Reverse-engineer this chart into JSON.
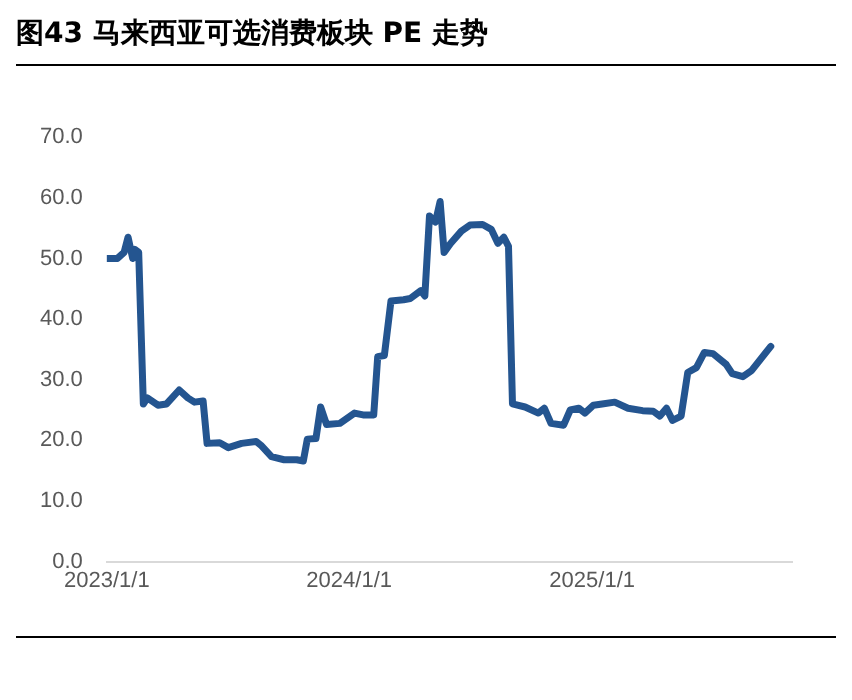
{
  "chart_data": {
    "type": "line",
    "title": "图43 马来西亚可选消费板块 PE 走势",
    "x": [
      "2023-01-01",
      "2023-01-17",
      "2023-01-27",
      "2023-02-02",
      "2023-02-09",
      "2023-02-12",
      "2023-02-18",
      "2023-02-25",
      "2023-03-03",
      "2023-03-19",
      "2023-04-01",
      "2023-04-20",
      "2023-05-03",
      "2023-05-13",
      "2023-05-26",
      "2023-06-01",
      "2023-06-20",
      "2023-07-03",
      "2023-07-23",
      "2023-08-14",
      "2023-08-21",
      "2023-09-06",
      "2023-09-25",
      "2023-10-14",
      "2023-10-24",
      "2023-10-30",
      "2023-11-12",
      "2023-11-19",
      "2023-11-28",
      "2023-12-18",
      "2024-01-09",
      "2024-01-22",
      "2024-02-07",
      "2024-02-13",
      "2024-02-23",
      "2024-03-04",
      "2024-03-23",
      "2024-04-02",
      "2024-04-18",
      "2024-04-24",
      "2024-05-01",
      "2024-05-10",
      "2024-05-17",
      "2024-05-23",
      "2024-06-02",
      "2024-06-18",
      "2024-07-01",
      "2024-07-20",
      "2024-08-02",
      "2024-08-12",
      "2024-08-21",
      "2024-08-28",
      "2024-09-03",
      "2024-09-22",
      "2024-10-12",
      "2024-10-21",
      "2024-10-31",
      "2024-11-19",
      "2024-11-29",
      "2024-12-12",
      "2024-12-21",
      "2025-01-03",
      "2025-01-16",
      "2025-02-04",
      "2025-02-24",
      "2025-03-18",
      "2025-04-03",
      "2025-04-13",
      "2025-04-23",
      "2025-05-02",
      "2025-05-15",
      "2025-05-25",
      "2025-06-07",
      "2025-06-19",
      "2025-07-02",
      "2025-07-22",
      "2025-07-31",
      "2025-08-16",
      "2025-08-29",
      "2025-09-27"
    ],
    "series": [
      {
        "color": "#245590",
        "values": [
          50,
          50,
          51,
          53.5,
          50,
          51.5,
          51,
          26,
          27,
          25.8,
          26,
          28.3,
          27,
          26.3,
          26.5,
          19.5,
          19.6,
          18.8,
          19.5,
          19.8,
          19.2,
          17.3,
          16.8,
          16.8,
          16.6,
          20.2,
          20.3,
          25.5,
          22.6,
          22.8,
          24.5,
          24.2,
          24.2,
          33.8,
          34,
          43,
          43.2,
          43.4,
          44.7,
          43.8,
          57,
          56,
          59.4,
          51,
          52.5,
          54.5,
          55.5,
          55.6,
          54.8,
          52.5,
          53.5,
          52,
          26,
          25.5,
          24.5,
          25.3,
          22.8,
          22.5,
          25,
          25.3,
          24.5,
          25.8,
          26,
          26.3,
          25.3,
          24.9,
          24.8,
          24,
          25.3,
          23.3,
          24,
          31.2,
          32,
          34.5,
          34.3,
          32.5,
          31,
          30.5,
          31.5,
          35.5
        ]
      }
    ],
    "xlim": [
      "2023-01-01",
      "2025-10-29"
    ],
    "xticks": [
      {
        "value": "2023-01-01",
        "label": "2023/1/1"
      },
      {
        "value": "2024-01-01",
        "label": "2024/1/1"
      },
      {
        "value": "2025-01-01",
        "label": "2025/1/1"
      }
    ],
    "ylim": [
      0,
      70
    ],
    "yticks": [
      {
        "value": 0,
        "label": "0.0"
      },
      {
        "value": 10,
        "label": "10.0"
      },
      {
        "value": 20,
        "label": "20.0"
      },
      {
        "value": 30,
        "label": "30.0"
      },
      {
        "value": 40,
        "label": "40.0"
      },
      {
        "value": 50,
        "label": "50.0"
      },
      {
        "value": 60,
        "label": "60.0"
      },
      {
        "value": 70,
        "label": "70.0"
      }
    ],
    "grid": false,
    "legend": false,
    "marker": "none",
    "line_style": "solid"
  }
}
